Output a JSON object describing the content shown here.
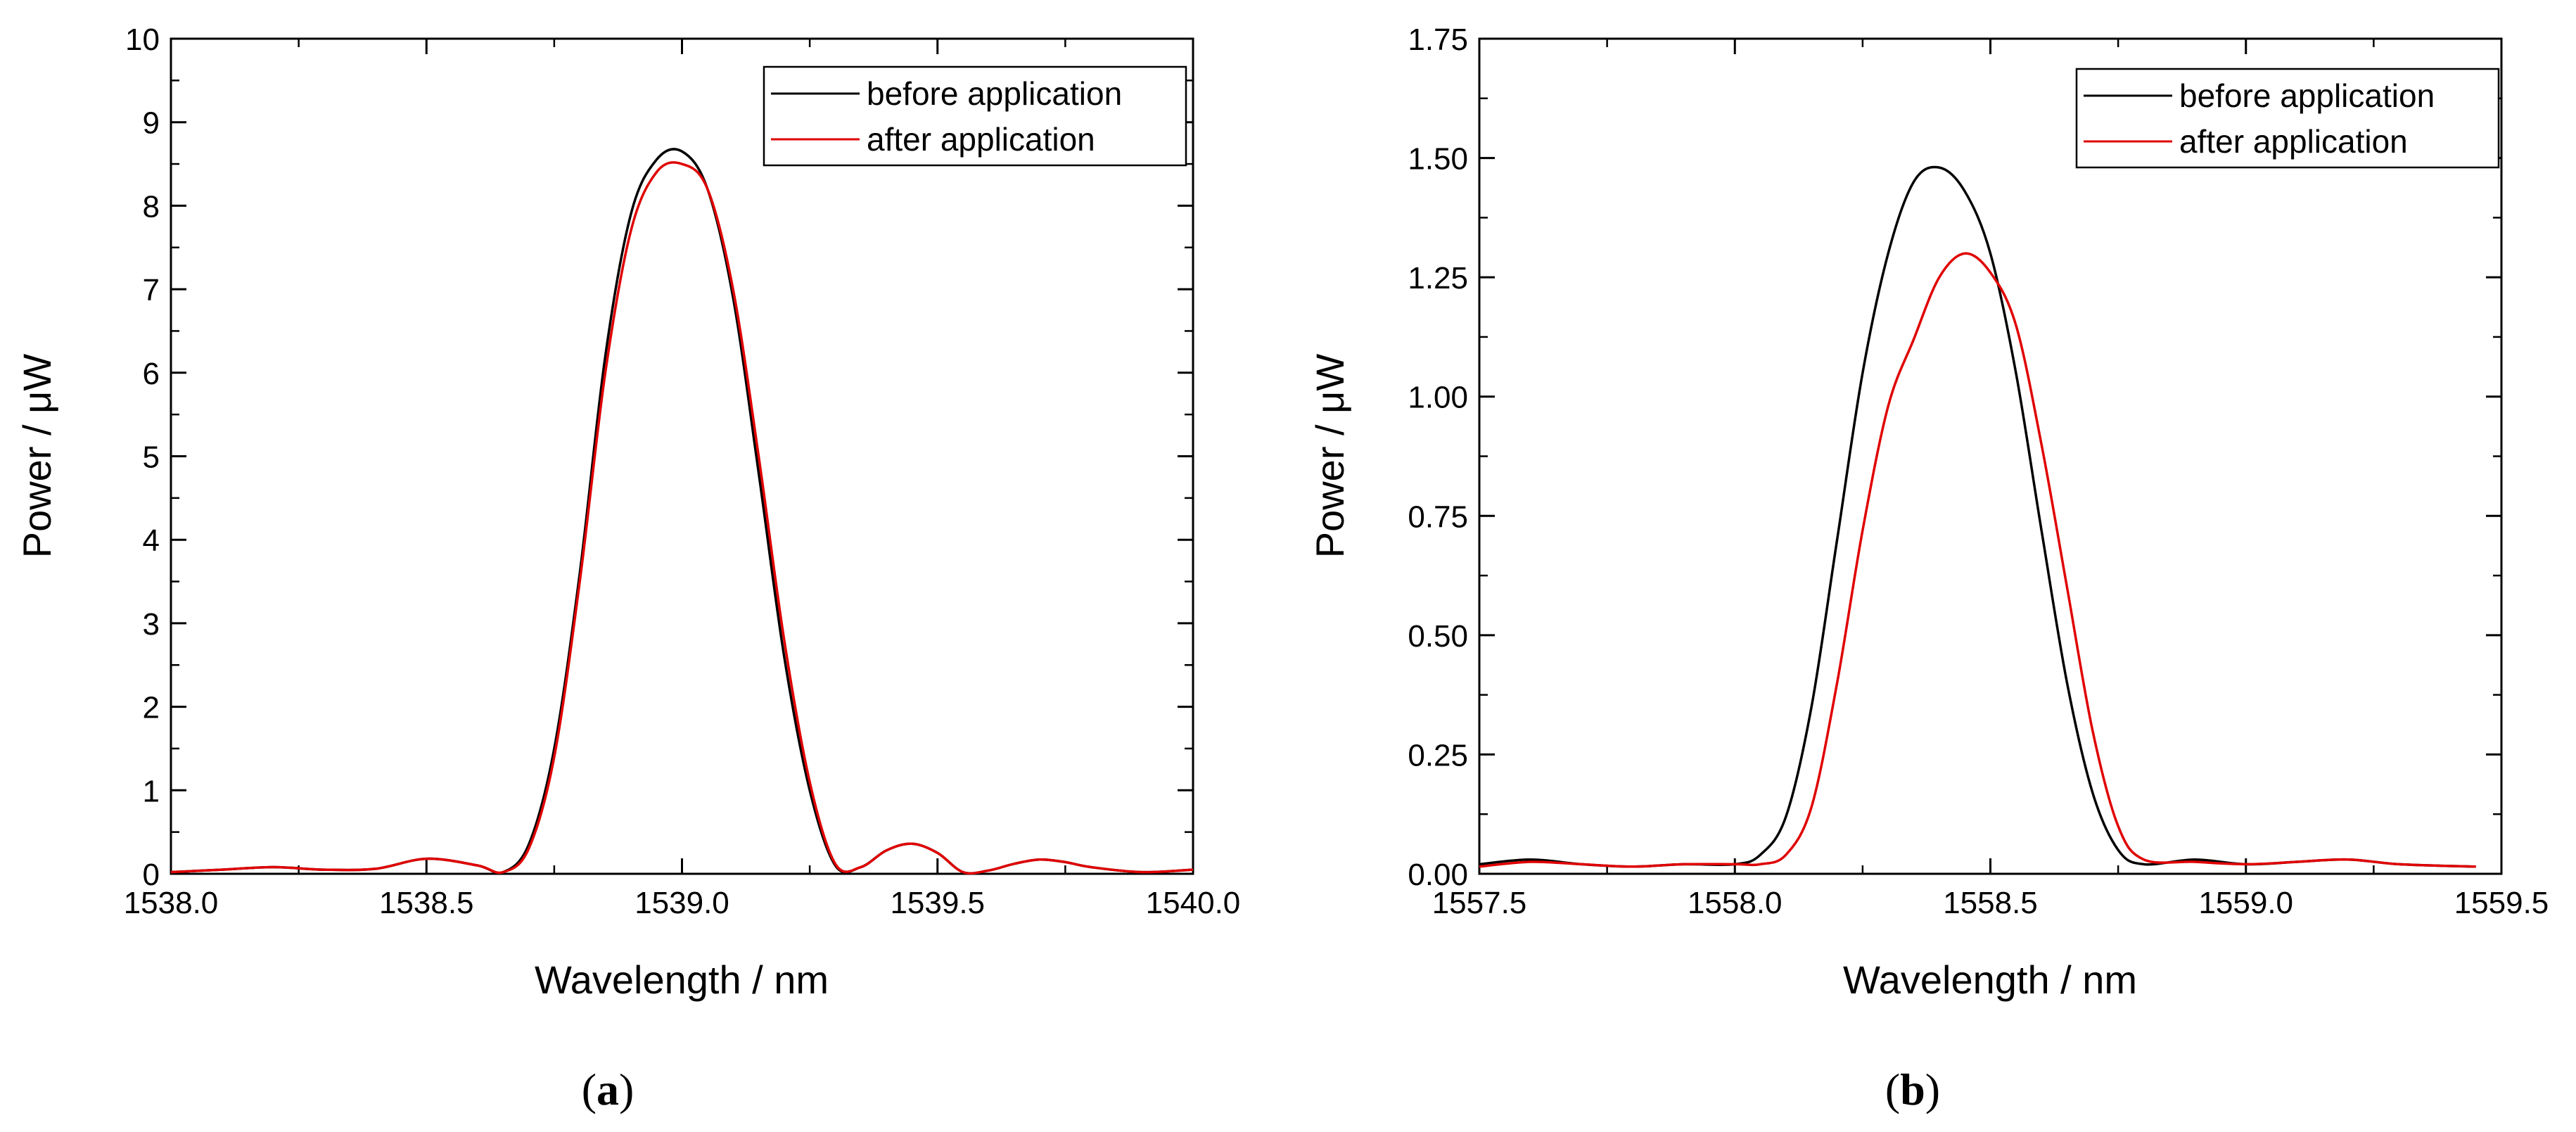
{
  "chart_data": [
    {
      "type": "line",
      "panel": "a",
      "caption_open": "(",
      "caption_letter": "a",
      "caption_close": ")",
      "xlabel": "Wavelength / nm",
      "ylabel": "Power / μW",
      "xlim": [
        1538.0,
        1540.0
      ],
      "ylim": [
        0,
        10
      ],
      "xticks": [
        1538.0,
        1538.5,
        1539.0,
        1539.5,
        1540.0
      ],
      "xtick_labels": [
        "1538.0",
        "1538.5",
        "1539.0",
        "1539.5",
        "1540.0"
      ],
      "yticks": [
        0,
        1,
        2,
        3,
        4,
        5,
        6,
        7,
        8,
        9,
        10
      ],
      "ytick_labels": [
        "0",
        "1",
        "2",
        "3",
        "4",
        "5",
        "6",
        "7",
        "8",
        "9",
        "10"
      ],
      "legend_position": "top-right",
      "series": [
        {
          "name": "before application",
          "color": "#000000",
          "x": [
            1538.0,
            1538.1,
            1538.2,
            1538.3,
            1538.4,
            1538.5,
            1538.6,
            1538.65,
            1538.7,
            1538.75,
            1538.8,
            1538.85,
            1538.9,
            1538.95,
            1539.0,
            1539.05,
            1539.1,
            1539.15,
            1539.2,
            1539.25,
            1539.3,
            1539.35,
            1539.4,
            1539.45,
            1539.5,
            1539.55,
            1539.6,
            1539.65,
            1539.7,
            1539.75,
            1539.8,
            1539.9,
            1540.0
          ],
          "y": [
            0.02,
            0.05,
            0.08,
            0.05,
            0.06,
            0.18,
            0.1,
            0.02,
            0.35,
            1.5,
            3.6,
            6.2,
            7.9,
            8.55,
            8.65,
            8.2,
            6.9,
            4.8,
            2.6,
            1.0,
            0.1,
            0.08,
            0.28,
            0.36,
            0.25,
            0.02,
            0.04,
            0.12,
            0.17,
            0.14,
            0.08,
            0.02,
            0.05
          ]
        },
        {
          "name": "after application",
          "color": "#e00000",
          "x": [
            1538.0,
            1538.1,
            1538.2,
            1538.3,
            1538.4,
            1538.5,
            1538.6,
            1538.65,
            1538.7,
            1538.75,
            1538.8,
            1538.85,
            1538.9,
            1538.95,
            1539.0,
            1539.05,
            1539.1,
            1539.15,
            1539.2,
            1539.25,
            1539.3,
            1539.35,
            1539.4,
            1539.45,
            1539.5,
            1539.55,
            1539.6,
            1539.65,
            1539.7,
            1539.75,
            1539.8,
            1539.9,
            1540.0
          ],
          "y": [
            0.02,
            0.05,
            0.08,
            0.05,
            0.06,
            0.18,
            0.1,
            0.02,
            0.3,
            1.4,
            3.5,
            6.0,
            7.7,
            8.4,
            8.5,
            8.2,
            7.0,
            5.0,
            2.8,
            1.1,
            0.12,
            0.08,
            0.28,
            0.36,
            0.25,
            0.02,
            0.04,
            0.12,
            0.17,
            0.14,
            0.08,
            0.02,
            0.05
          ]
        }
      ]
    },
    {
      "type": "line",
      "panel": "b",
      "caption_open": "(",
      "caption_letter": "b",
      "caption_close": ")",
      "xlabel": "Wavelength / nm",
      "ylabel": "Power / μW",
      "xlim": [
        1557.5,
        1559.5
      ],
      "ylim": [
        0,
        1.75
      ],
      "xticks": [
        1557.5,
        1558.0,
        1558.5,
        1559.0,
        1559.5
      ],
      "xtick_labels": [
        "1557.5",
        "1558.0",
        "1558.5",
        "1559.0",
        "1559.5"
      ],
      "yticks": [
        0,
        0.25,
        0.5,
        0.75,
        1.0,
        1.25,
        1.5,
        1.75
      ],
      "ytick_labels": [
        "0.00",
        "0.25",
        "0.50",
        "0.75",
        "1.00",
        "1.25",
        "1.50",
        "1.75"
      ],
      "legend_position": "top-right",
      "series": [
        {
          "name": "before application",
          "color": "#000000",
          "x": [
            1557.5,
            1557.6,
            1557.7,
            1557.8,
            1557.9,
            1558.0,
            1558.05,
            1558.1,
            1558.15,
            1558.2,
            1558.25,
            1558.3,
            1558.35,
            1558.4,
            1558.45,
            1558.5,
            1558.55,
            1558.6,
            1558.65,
            1558.7,
            1558.75,
            1558.8,
            1558.9,
            1559.0,
            1559.1,
            1559.2,
            1559.3,
            1559.45
          ],
          "y": [
            0.02,
            0.03,
            0.02,
            0.015,
            0.02,
            0.02,
            0.04,
            0.12,
            0.35,
            0.7,
            1.05,
            1.3,
            1.45,
            1.48,
            1.43,
            1.3,
            1.05,
            0.72,
            0.4,
            0.17,
            0.05,
            0.02,
            0.03,
            0.02,
            0.025,
            0.03,
            0.02,
            0.015
          ]
        },
        {
          "name": "after application",
          "color": "#e00000",
          "x": [
            1557.5,
            1557.6,
            1557.7,
            1557.8,
            1557.9,
            1558.0,
            1558.05,
            1558.1,
            1558.15,
            1558.2,
            1558.25,
            1558.3,
            1558.35,
            1558.4,
            1558.45,
            1558.5,
            1558.55,
            1558.6,
            1558.65,
            1558.7,
            1558.75,
            1558.8,
            1558.9,
            1559.0,
            1559.1,
            1559.2,
            1559.3,
            1559.45
          ],
          "y": [
            0.015,
            0.025,
            0.02,
            0.015,
            0.02,
            0.02,
            0.02,
            0.04,
            0.14,
            0.4,
            0.72,
            0.98,
            1.12,
            1.25,
            1.3,
            1.26,
            1.15,
            0.9,
            0.6,
            0.3,
            0.1,
            0.03,
            0.025,
            0.02,
            0.025,
            0.03,
            0.02,
            0.015
          ]
        }
      ]
    }
  ]
}
